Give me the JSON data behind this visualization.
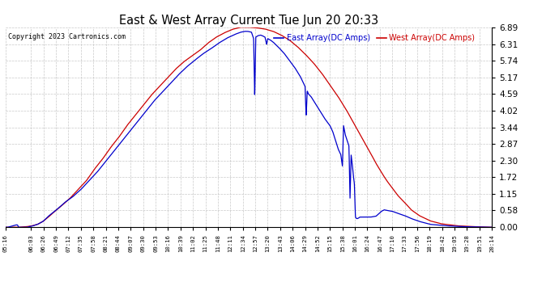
{
  "title": "East & West Array Current Tue Jun 20 20:33",
  "copyright": "Copyright 2023 Cartronics.com",
  "legend_east": "East Array(DC Amps)",
  "legend_west": "West Array(DC Amps)",
  "east_color": "#0000cc",
  "west_color": "#cc0000",
  "background_color": "#ffffff",
  "grid_color": "#bbbbbb",
  "yticks": [
    0.0,
    0.58,
    1.15,
    1.72,
    2.3,
    2.87,
    3.44,
    4.02,
    4.59,
    5.17,
    5.74,
    6.31,
    6.89
  ],
  "ymax": 6.89,
  "xtick_labels": [
    "05:16",
    "06:03",
    "06:26",
    "06:49",
    "07:12",
    "07:35",
    "07:58",
    "08:21",
    "08:44",
    "09:07",
    "09:30",
    "09:53",
    "10:16",
    "10:39",
    "11:02",
    "11:25",
    "11:48",
    "12:11",
    "12:34",
    "12:57",
    "13:20",
    "13:43",
    "14:06",
    "14:29",
    "14:52",
    "15:15",
    "15:38",
    "16:01",
    "16:24",
    "16:47",
    "17:10",
    "17:33",
    "17:56",
    "18:19",
    "18:42",
    "19:05",
    "19:28",
    "19:51",
    "20:14"
  ]
}
